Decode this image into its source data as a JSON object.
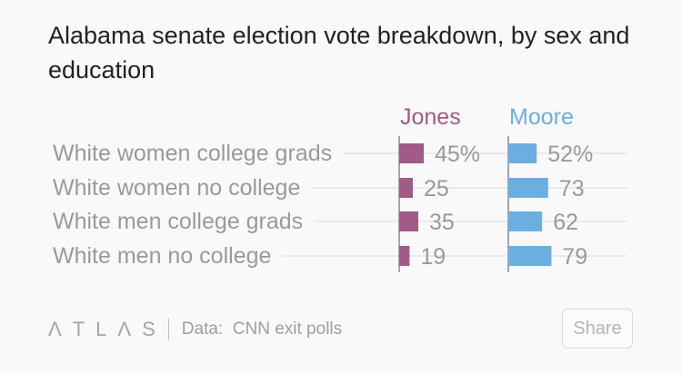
{
  "chart_data": {
    "type": "bar",
    "title": "Alabama senate election vote breakdown, by sex and education",
    "categories": [
      "White women college grads",
      "White women no college",
      "White men college grads",
      "White men no college"
    ],
    "series": [
      {
        "name": "Jones",
        "color": "#a25b87",
        "values": [
          45,
          25,
          35,
          19
        ],
        "labels": [
          "45%",
          "25",
          "35",
          "19"
        ]
      },
      {
        "name": "Moore",
        "color": "#6aafe0",
        "values": [
          52,
          73,
          62,
          79
        ],
        "labels": [
          "52%",
          "73",
          "62",
          "79"
        ]
      }
    ],
    "xlim": [
      0,
      100
    ],
    "unit": "%",
    "xlabel": "",
    "ylabel": ""
  },
  "footer": {
    "logo_letters": [
      "Λ",
      "T",
      "L",
      "Λ",
      "S"
    ],
    "source": "Data:  CNN exit polls",
    "share_label": "Share"
  }
}
